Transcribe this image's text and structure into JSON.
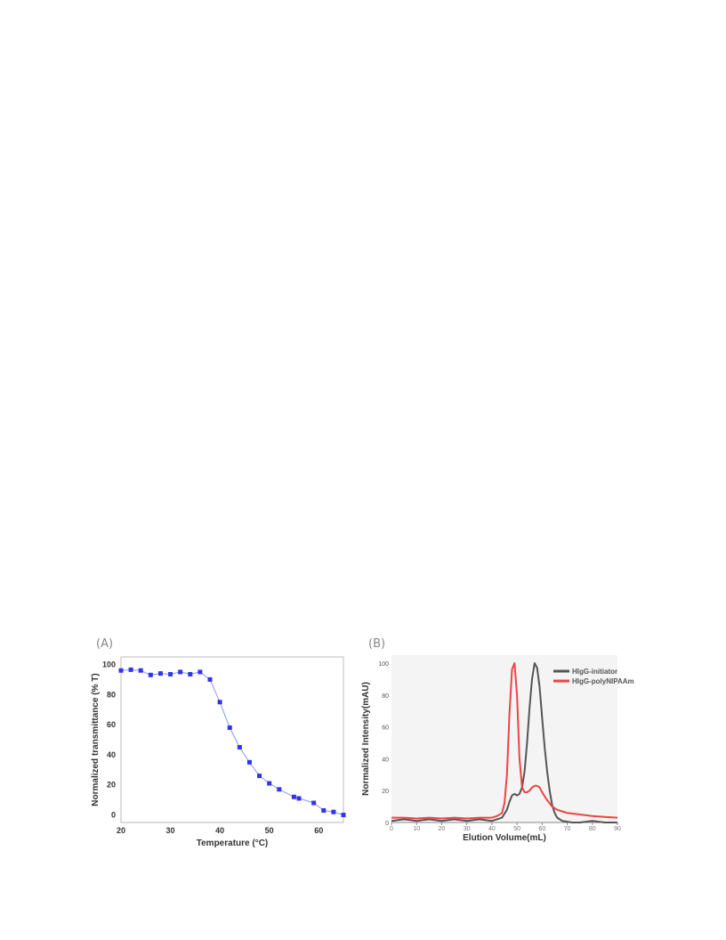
{
  "panels": [
    {
      "label": "(A)"
    },
    {
      "label": "(B)"
    }
  ],
  "chart_data": [
    {
      "type": "scatter",
      "title": "",
      "xlabel": "Temperature (°C)",
      "ylabel": "Normalized transmittance (% T)",
      "xlim": [
        20,
        65
      ],
      "ylim": [
        -5,
        105
      ],
      "xticks": [
        20,
        30,
        40,
        50,
        60
      ],
      "yticks": [
        0,
        20,
        40,
        60,
        80,
        100
      ],
      "grid": false,
      "line_color": "#8899ee",
      "marker_color": "#3333ee",
      "series": [
        {
          "x": [
            20,
            22,
            24,
            26,
            28,
            30,
            32,
            34,
            36,
            38,
            40,
            42,
            44,
            46,
            48,
            50,
            52,
            55,
            56,
            59,
            61,
            63,
            65
          ],
          "y": [
            96,
            96.5,
            96,
            93,
            94,
            93.5,
            95,
            93.5,
            95,
            90,
            75,
            58,
            45,
            35,
            26,
            21,
            17,
            12,
            11,
            8,
            3,
            2,
            0
          ]
        }
      ]
    },
    {
      "type": "line",
      "title": "",
      "xlabel": "Elution Volume(mL)",
      "ylabel": "Normalized Intensity(mAU)",
      "xlim": [
        0,
        90
      ],
      "ylim": [
        0,
        105
      ],
      "xticks": [
        0,
        10,
        20,
        30,
        40,
        50,
        60,
        70,
        80,
        90
      ],
      "yticks": [
        0,
        20,
        40,
        60,
        80,
        100
      ],
      "grid": false,
      "legend_position": "top-right",
      "series": [
        {
          "name": "HIgG-initiator",
          "color": "#555555",
          "x": [
            0,
            5,
            10,
            15,
            20,
            25,
            30,
            35,
            40,
            42,
            44,
            46,
            47,
            48,
            49,
            50,
            51,
            52,
            53,
            54,
            55,
            56,
            57,
            58,
            59,
            60,
            61,
            62,
            63,
            64,
            65,
            66,
            68,
            70,
            72,
            75,
            80,
            85,
            90
          ],
          "y": [
            1,
            2,
            1,
            2,
            1,
            2,
            1,
            2,
            1,
            2,
            3,
            8,
            13,
            17,
            18,
            17,
            18,
            22,
            32,
            50,
            72,
            90,
            100,
            97,
            85,
            66,
            47,
            32,
            20,
            11,
            6,
            3,
            1,
            0.5,
            0,
            0,
            1,
            0,
            0
          ]
        },
        {
          "name": "HIgG-polyNIPAAm",
          "color": "#ee4444",
          "x": [
            0,
            5,
            10,
            15,
            20,
            25,
            30,
            35,
            40,
            42,
            44,
            45,
            46,
            47,
            48,
            49,
            50,
            51,
            52,
            53,
            54,
            55,
            56,
            57,
            58,
            59,
            60,
            62,
            64,
            66,
            68,
            70,
            75,
            80,
            85,
            90
          ],
          "y": [
            3,
            3,
            2.5,
            3,
            2.5,
            3,
            2.5,
            3,
            3,
            4,
            6,
            12,
            30,
            68,
            96,
            100,
            80,
            40,
            22,
            19,
            19,
            20,
            22,
            23,
            23,
            22,
            19,
            14,
            10,
            8,
            7,
            6,
            5,
            4,
            3.5,
            3
          ]
        }
      ]
    }
  ]
}
